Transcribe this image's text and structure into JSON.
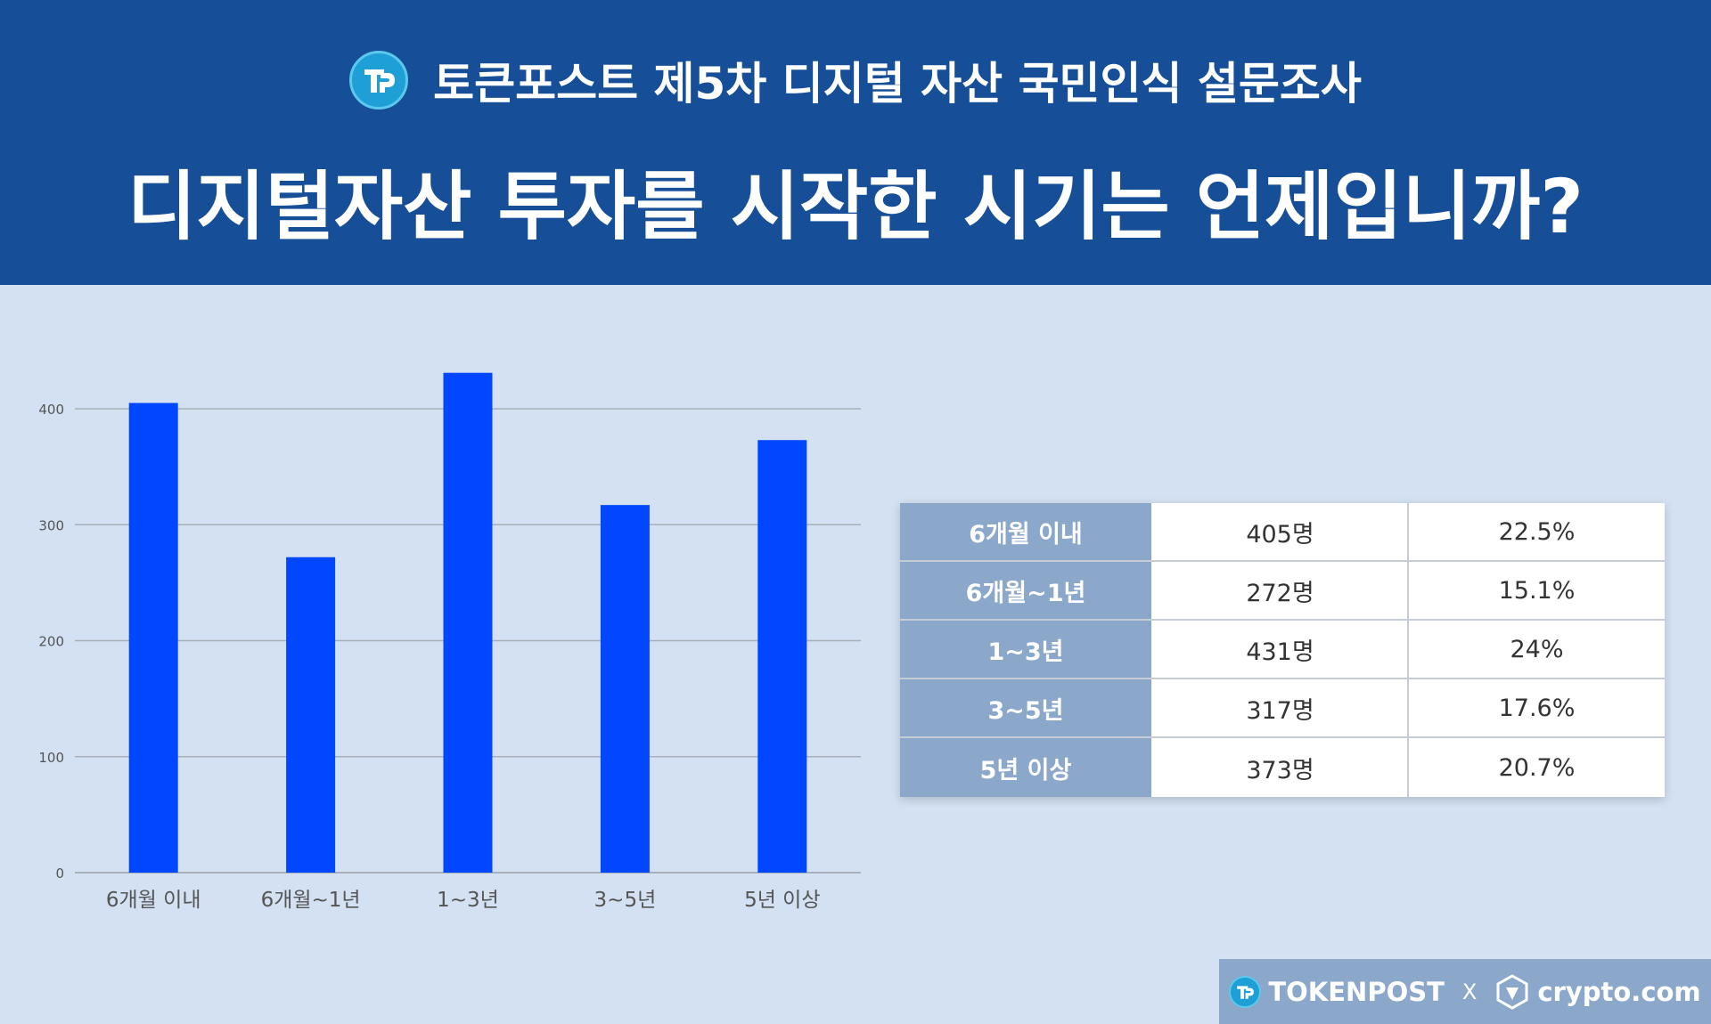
{
  "header": {
    "survey_title": "토큰포스트 제5차 디지털 자산 국민인식 설문조사",
    "question": "디지털자산 투자를 시작한 시기는 언제입니까?"
  },
  "chart_data": {
    "type": "bar",
    "title": "",
    "xlabel": "",
    "ylabel": "",
    "categories": [
      "6개월 이내",
      "6개월~1년",
      "1~3년",
      "3~5년",
      "5년 이상"
    ],
    "values": [
      405,
      272,
      431,
      317,
      373
    ],
    "ylim": [
      0,
      430
    ],
    "yticks": [
      0,
      100,
      200,
      300,
      400
    ],
    "grid": true,
    "bar_color": "#0047ff"
  },
  "table": {
    "rows": [
      {
        "label": "6개월 이내",
        "count": "405명",
        "percent": "22.5%"
      },
      {
        "label": "6개월~1년",
        "count": "272명",
        "percent": "15.1%"
      },
      {
        "label": "1~3년",
        "count": "431명",
        "percent": "24%"
      },
      {
        "label": "3~5년",
        "count": "317명",
        "percent": "17.6%"
      },
      {
        "label": "5년 이상",
        "count": "373명",
        "percent": "20.7%"
      }
    ]
  },
  "footer": {
    "brand_left": "TOKENPOST",
    "separator": "X",
    "brand_right": "crypto.com"
  }
}
